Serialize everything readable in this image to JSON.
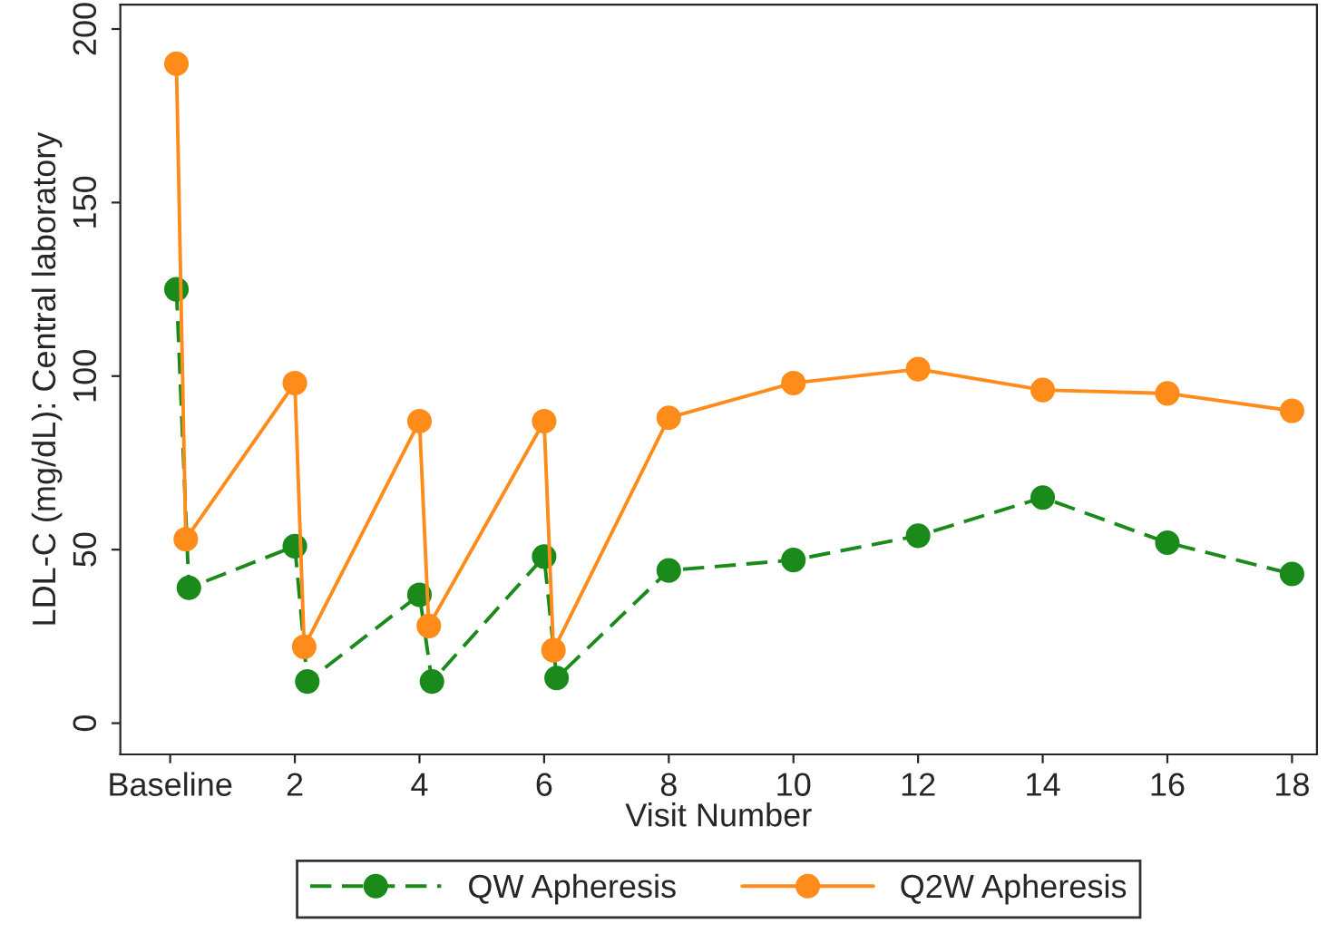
{
  "chart_data": {
    "type": "line",
    "xlabel": "Visit Number",
    "ylabel": "LDL-C (mg/dL): Central laboratory",
    "xlim": [
      -0.8,
      18.4
    ],
    "xticks": [
      {
        "value": 0,
        "label": "Baseline"
      },
      2,
      4,
      6,
      8,
      10,
      12,
      14,
      16,
      18
    ],
    "ylim": [
      -9,
      207
    ],
    "yticks": [
      0,
      50,
      100,
      150,
      200
    ],
    "grid": false,
    "legend": "bottom",
    "marker": "circle",
    "series": [
      {
        "name": "QW Apheresis",
        "color": "#1a8a1a",
        "line_style": "dashed",
        "x": [
          0.1,
          0.3,
          2,
          2.2,
          4,
          4.2,
          6,
          6.2,
          8,
          10,
          12,
          14,
          16,
          18
        ],
        "values": [
          125,
          39,
          51,
          12,
          37,
          12,
          48,
          13,
          44,
          47,
          54,
          65,
          52,
          43
        ]
      },
      {
        "name": "Q2W Apheresis",
        "color": "#ff8c1a",
        "line_style": "solid",
        "x": [
          0.1,
          0.25,
          2,
          2.15,
          4,
          4.15,
          6,
          6.15,
          8,
          10,
          12,
          14,
          16,
          18
        ],
        "values": [
          190,
          53,
          98,
          22,
          87,
          28,
          87,
          21,
          88,
          98,
          102,
          96,
          95,
          90
        ]
      }
    ]
  }
}
